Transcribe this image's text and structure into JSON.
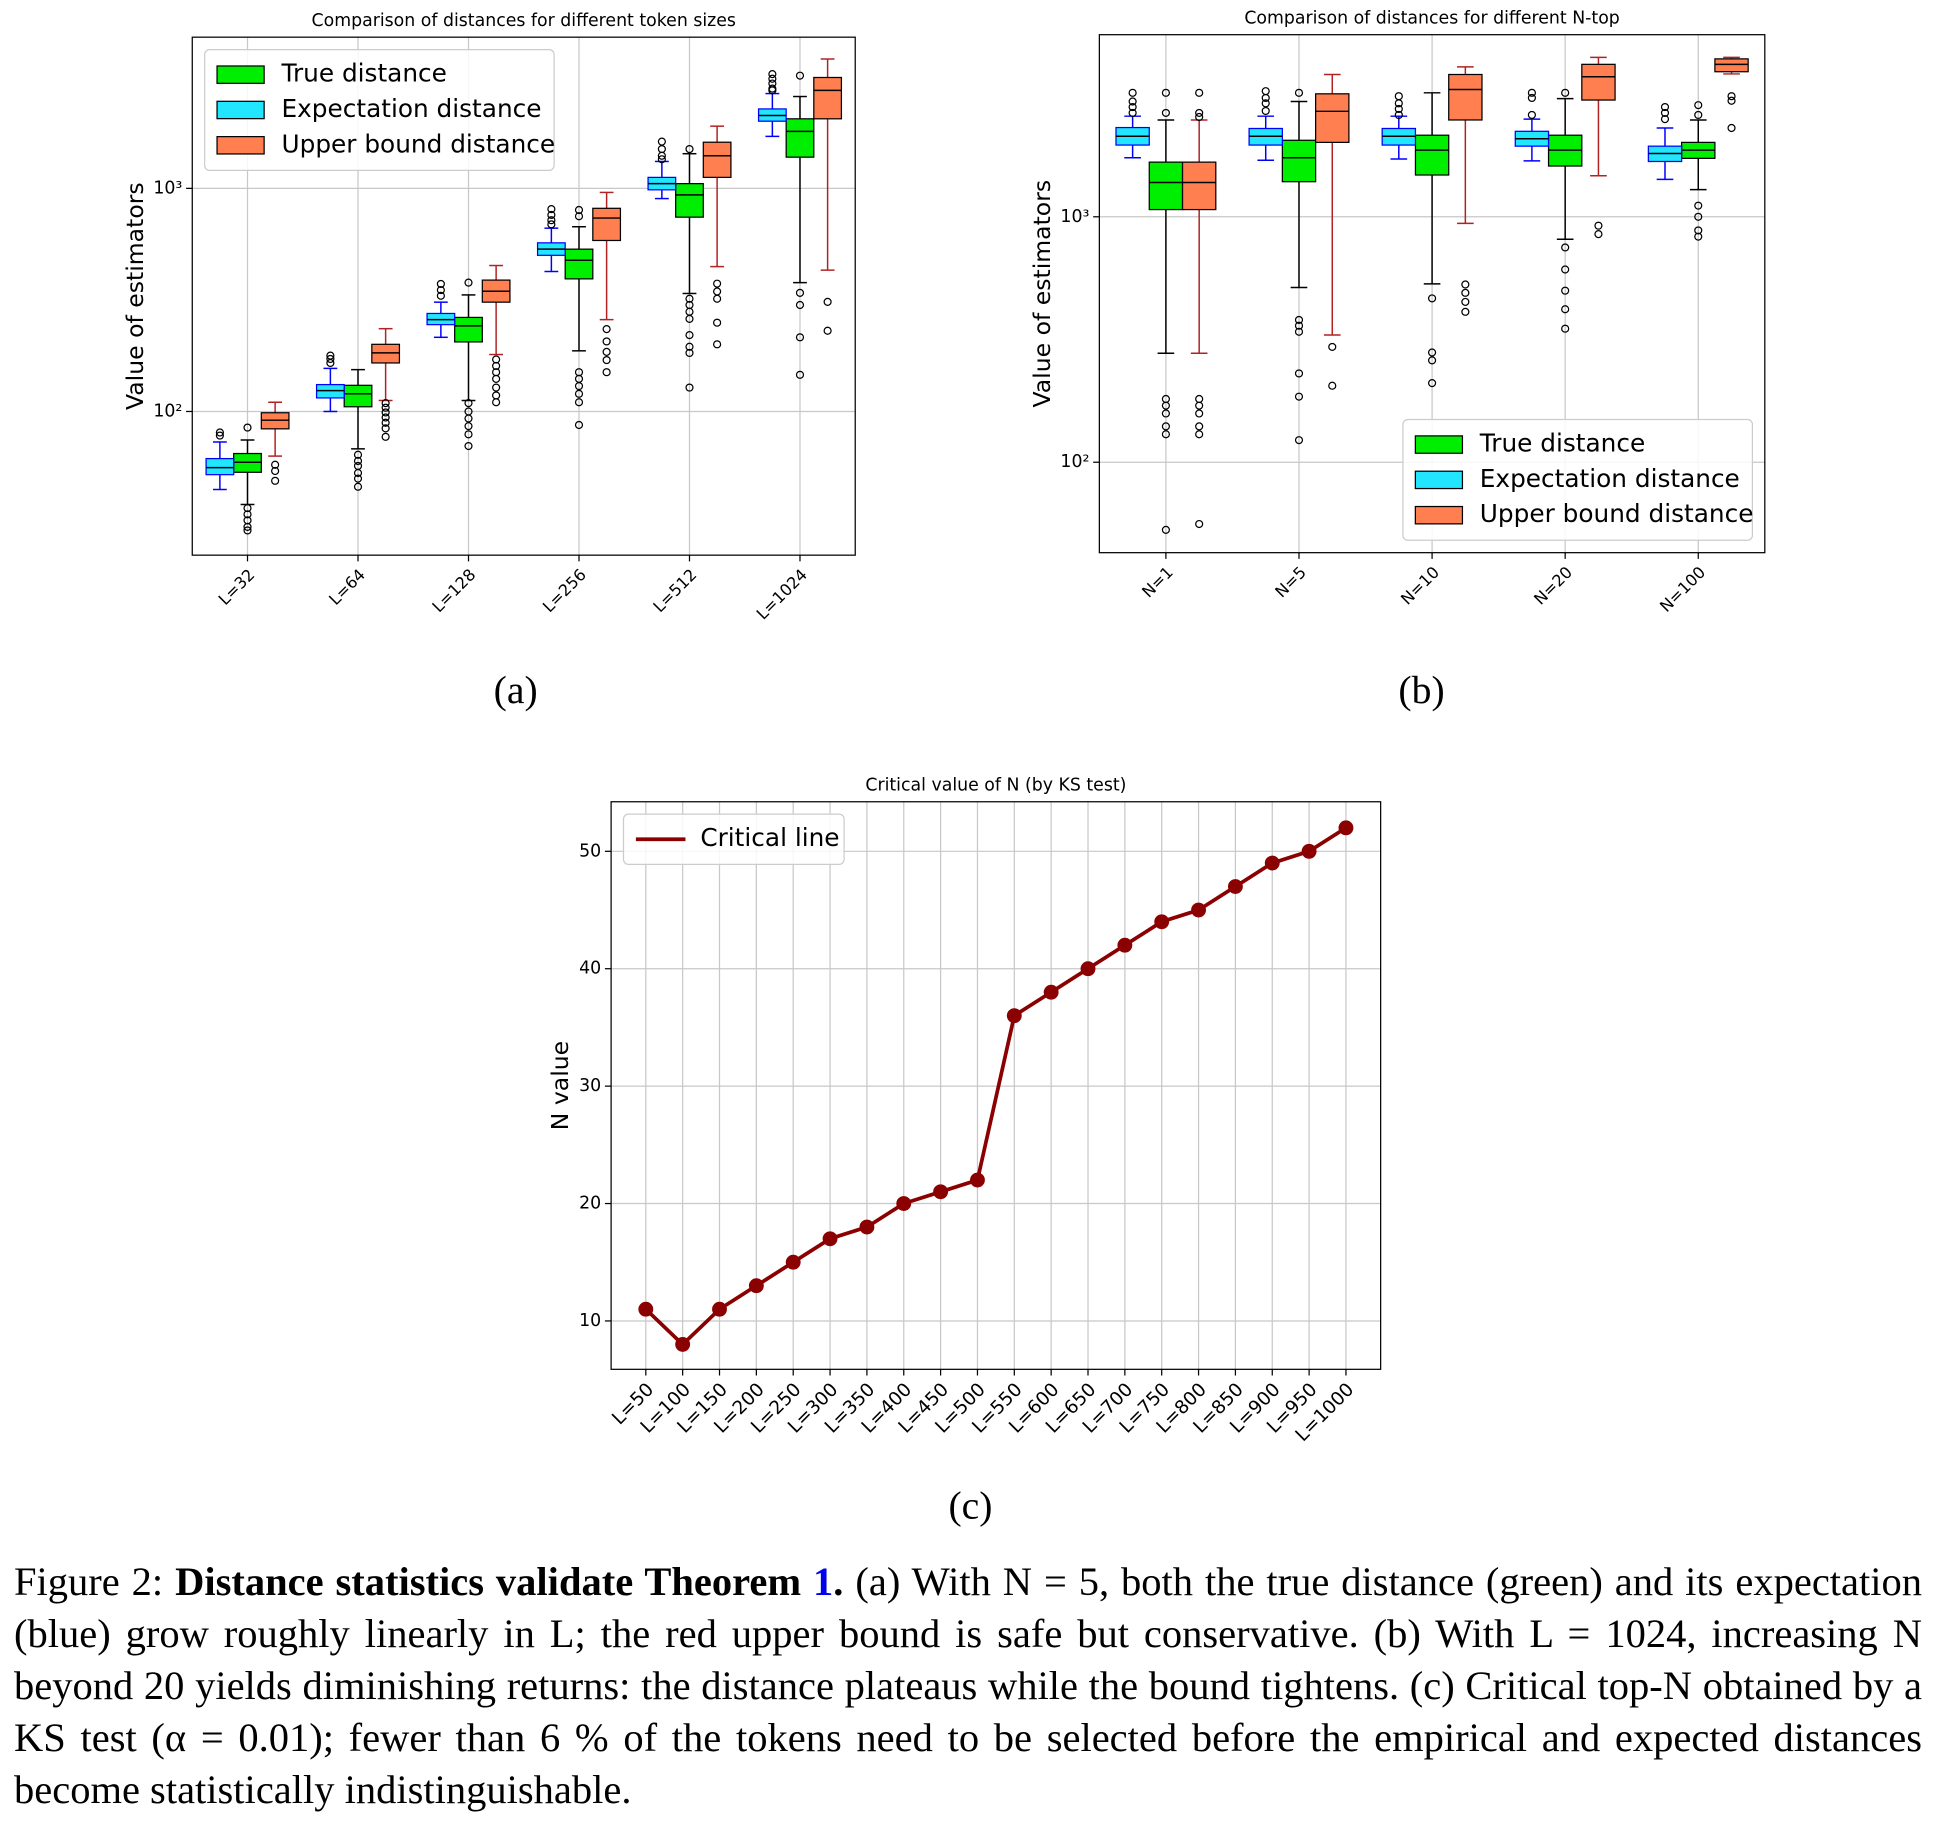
{
  "chart_data": [
    {
      "type": "box",
      "title": "Comparison of distances for different token sizes",
      "ylabel": "Value of estimators",
      "panel_label": "(a)",
      "categories": [
        "L=32",
        "L=64",
        "L=128",
        "L=256",
        "L=512",
        "L=1024"
      ],
      "log_y": true,
      "grid": true,
      "legend": "upper left",
      "ylim": [
        22.7,
        4760
      ],
      "yticks": [
        {
          "value": 100,
          "label": "10²"
        },
        {
          "value": 1000,
          "label": "10³"
        }
      ],
      "series": [
        {
          "name": "True distance",
          "color": "#00ee00",
          "whisker_color": "#000000",
          "boxes": [
            {
              "whislo": 38.3,
              "q1": 53.4,
              "med": 59.2,
              "q3": 64.8,
              "whishi": 74.5,
              "fliers": [
                84.7,
                36.9,
                34.6,
                32.5,
                30.4,
                29.3
              ]
            },
            {
              "whislo": 68,
              "q1": 105,
              "med": 120,
              "q3": 131,
              "whishi": 154,
              "fliers": [
                64,
                60,
                57,
                53,
                50,
                46
              ]
            },
            {
              "whislo": 112,
              "q1": 205,
              "med": 242,
              "q3": 264,
              "whishi": 333,
              "fliers": [
                378,
                109,
                100,
                93,
                86,
                79,
                70
              ]
            },
            {
              "whislo": 187,
              "q1": 393,
              "med": 476,
              "q3": 534,
              "whishi": 673,
              "fliers": [
                800,
                750,
                150,
                140,
                130,
                120,
                110,
                87
              ]
            },
            {
              "whislo": 338,
              "q1": 743,
              "med": 935,
              "q3": 1050,
              "whishi": 1430,
              "fliers": [
                1500,
                320,
                300,
                280,
                260,
                220,
                195,
                183,
                128
              ]
            },
            {
              "whislo": 378,
              "q1": 1380,
              "med": 1800,
              "q3": 2050,
              "whishi": 2580,
              "fliers": [
                3200,
                340,
                300,
                215,
                146
              ]
            }
          ]
        },
        {
          "name": "Expectation distance",
          "color": "#22e5ff",
          "whisker_color": "#0000ff",
          "boxes": [
            {
              "whislo": 44.7,
              "q1": 52.1,
              "med": 56,
              "q3": 61.5,
              "whishi": 73,
              "fliers": [
                80.5,
                78
              ]
            },
            {
              "whislo": 100,
              "q1": 115,
              "med": 124,
              "q3": 132,
              "whishi": 156,
              "fliers": [
                165,
                172,
                178
              ]
            },
            {
              "whislo": 215,
              "q1": 245,
              "med": 258,
              "q3": 275,
              "whishi": 309,
              "fliers": [
                373,
                350,
                330
              ]
            },
            {
              "whislo": 424,
              "q1": 501,
              "med": 534,
              "q3": 570,
              "whishi": 663,
              "fliers": [
                807,
                760,
                720,
                690
              ]
            },
            {
              "whislo": 900,
              "q1": 985,
              "med": 1050,
              "q3": 1120,
              "whishi": 1320,
              "fliers": [
                1620,
                1500,
                1400,
                1350
              ]
            },
            {
              "whislo": 1710,
              "q1": 2000,
              "med": 2120,
              "q3": 2270,
              "whishi": 2660,
              "fliers": [
                3250,
                3100,
                2950,
                2800,
                2750
              ]
            }
          ]
        },
        {
          "name": "Upper bound distance",
          "color": "#ff7f50",
          "whisker_color": "#b22222",
          "boxes": [
            {
              "whislo": 63.1,
              "q1": 83.6,
              "med": 91.4,
              "q3": 98.7,
              "whishi": 110,
              "fliers": [
                57.7,
                54.1,
                48.9
              ]
            },
            {
              "whislo": 112,
              "q1": 165,
              "med": 183,
              "q3": 200,
              "whishi": 235,
              "fliers": [
                109,
                104,
                99,
                94,
                89,
                84,
                77
              ]
            },
            {
              "whislo": 180,
              "q1": 309,
              "med": 346,
              "q3": 388,
              "whishi": 451,
              "fliers": [
                171,
                160,
                150,
                140,
                128,
                118,
                110
              ]
            },
            {
              "whislo": 258,
              "q1": 584,
              "med": 736,
              "q3": 814,
              "whishi": 959,
              "fliers": [
                234,
                206,
                185,
                170,
                150
              ]
            },
            {
              "whislo": 446,
              "q1": 1120,
              "med": 1400,
              "q3": 1610,
              "whishi": 1900,
              "fliers": [
                374,
                345,
                320,
                250,
                200
              ]
            },
            {
              "whislo": 430,
              "q1": 2050,
              "med": 2750,
              "q3": 3140,
              "whishi": 3800,
              "fliers": [
                310,
                230
              ]
            }
          ]
        }
      ]
    },
    {
      "type": "box",
      "title": "Comparison of distances for different N-top",
      "ylabel": "Value of estimators",
      "panel_label": "(b)",
      "categories": [
        "N=1",
        "N=5",
        "N=10",
        "N=20",
        "N=100"
      ],
      "log_y": true,
      "grid": true,
      "legend": "lower right",
      "ylim": [
        42.8,
        5520
      ],
      "yticks": [
        {
          "value": 100,
          "label": "10²"
        },
        {
          "value": 1000,
          "label": "10³"
        }
      ],
      "series": [
        {
          "name": "True distance",
          "color": "#00ee00",
          "whisker_color": "#000000",
          "boxes": [
            {
              "whislo": 278,
              "q1": 1070,
              "med": 1380,
              "q3": 1670,
              "whishi": 2480,
              "fliers": [
                3200,
                2650,
                181,
                170,
                158,
                140,
                130,
                53
              ]
            },
            {
              "whislo": 515,
              "q1": 1390,
              "med": 1740,
              "q3": 2050,
              "whishi": 2950,
              "fliers": [
                3200,
                380,
                360,
                340,
                230,
                185,
                123
              ]
            },
            {
              "whislo": 533,
              "q1": 1480,
              "med": 1870,
              "q3": 2150,
              "whishi": 3200,
              "fliers": [
                465,
                280,
                260,
                210
              ]
            },
            {
              "whislo": 810,
              "q1": 1610,
              "med": 1870,
              "q3": 2150,
              "whishi": 3030,
              "fliers": [
                3200,
                750,
                610,
                500,
                420,
                350
              ]
            },
            {
              "whislo": 1290,
              "q1": 1730,
              "med": 1870,
              "q3": 2010,
              "whishi": 2480,
              "fliers": [
                2850,
                2600,
                1110,
                1000,
                880,
                830
              ]
            }
          ]
        },
        {
          "name": "Expectation distance",
          "color": "#22e5ff",
          "whisker_color": "#0000ff",
          "boxes": [
            {
              "whislo": 1740,
              "q1": 1960,
              "med": 2130,
              "q3": 2310,
              "whishi": 2570,
              "fliers": [
                3200,
                2950,
                2800,
                2650
              ]
            },
            {
              "whislo": 1700,
              "q1": 1960,
              "med": 2130,
              "q3": 2290,
              "whishi": 2570,
              "fliers": [
                3250,
                3050,
                2900,
                2700
              ]
            },
            {
              "whislo": 1720,
              "q1": 1960,
              "med": 2130,
              "q3": 2290,
              "whishi": 2570,
              "fliers": [
                3100,
                2900,
                2750,
                2600
              ]
            },
            {
              "whislo": 1690,
              "q1": 1940,
              "med": 2080,
              "q3": 2230,
              "whishi": 2500,
              "fliers": [
                3200,
                3050,
                2600
              ]
            },
            {
              "whislo": 1420,
              "q1": 1680,
              "med": 1810,
              "q3": 1940,
              "whishi": 2300,
              "fliers": [
                2800,
                2650,
                2500
              ]
            }
          ]
        },
        {
          "name": "Upper bound distance",
          "color": "#ff7f50",
          "whisker_color": "#b22222",
          "boxes": [
            {
              "whislo": 278,
              "q1": 1070,
              "med": 1380,
              "q3": 1670,
              "whishi": 2480,
              "fliers": [
                3200,
                2650,
                2550,
                181,
                170,
                158,
                140,
                130,
                56
              ]
            },
            {
              "whislo": 330,
              "q1": 2010,
              "med": 2690,
              "q3": 3170,
              "whishi": 3800,
              "fliers": [
                295,
                205
              ]
            },
            {
              "whislo": 940,
              "q1": 2480,
              "med": 3300,
              "q3": 3800,
              "whishi": 4080,
              "fliers": [
                530,
                490,
                450,
                410
              ]
            },
            {
              "whislo": 1470,
              "q1": 2990,
              "med": 3720,
              "q3": 4180,
              "whishi": 4460,
              "fliers": [
                920,
                850
              ]
            },
            {
              "whislo": 3820,
              "q1": 3900,
              "med": 4180,
              "q3": 4400,
              "whishi": 4460,
              "fliers": [
                3100,
                2970,
                2300
              ]
            }
          ]
        }
      ]
    },
    {
      "type": "line",
      "title": "Critical value of N (by KS test)",
      "ylabel": "N value",
      "panel_label": "(c)",
      "categories": [
        "L=50",
        "L=100",
        "L=150",
        "L=200",
        "L=250",
        "L=300",
        "L=350",
        "L=400",
        "L=450",
        "L=500",
        "L=550",
        "L=600",
        "L=650",
        "L=700",
        "L=750",
        "L=800",
        "L=850",
        "L=900",
        "L=950",
        "L=1000"
      ],
      "grid": true,
      "legend": "upper left",
      "marker": true,
      "ylim": [
        5.88,
        54.22
      ],
      "yticks": [
        10,
        20,
        30,
        40,
        50
      ],
      "series": [
        {
          "name": "Critical line",
          "color": "#8b0000",
          "values": [
            11,
            8,
            11,
            13,
            15,
            17,
            18,
            20,
            21,
            22,
            36,
            38,
            40,
            42,
            44,
            45,
            47,
            49,
            50,
            52
          ]
        }
      ]
    }
  ],
  "caption": {
    "label": "Figure 2:",
    "heading": "Distance statistics validate Theorem",
    "ref": "1",
    "heading_end": ".",
    "body": "(a) With N = 5, both the true distance (green) and its expectation (blue) grow roughly linearly in L; the red upper bound is safe but conservative. (b) With L = 1024, increasing N beyond 20 yields diminishing returns: the distance plateaus while the bound tightens. (c) Critical top-N obtained by a KS test (α = 0.01); fewer than 6 % of the tokens need to be selected before the empirical and expected distances become statistically indistinguishable."
  }
}
